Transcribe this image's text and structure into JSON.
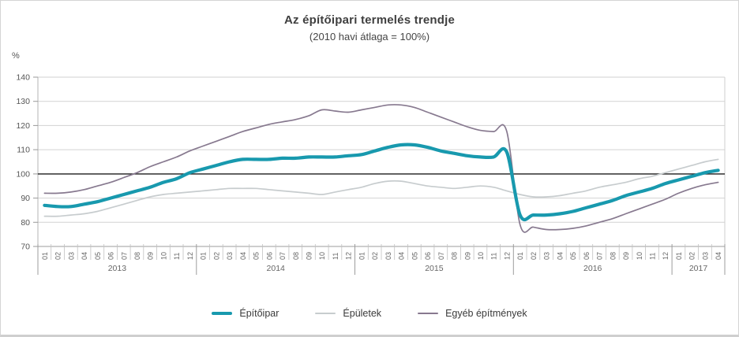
{
  "title": "Az építőipari termelés trendje",
  "subtitle": "(2010 havi átlaga = 100%)",
  "colors": {
    "baseline": "#1b1b1b",
    "grid": "#d2d2d2",
    "axis_line": "#9d9d9d",
    "minor_divider": "#c2c2c2",
    "axis_text": "#666666",
    "ytick_text": "#555555"
  },
  "chart_data": {
    "type": "line",
    "title": "Az építőipari termelés trendje",
    "subtitle": "(2010 havi átlaga = 100%)",
    "y_unit_label": "%",
    "ylim": [
      70,
      140
    ],
    "yticks": [
      70,
      80,
      90,
      100,
      110,
      120,
      130,
      140
    ],
    "baseline": 100,
    "grid": "horizontal",
    "legend_position": "bottom",
    "x_years": [
      {
        "label": "2013",
        "months": [
          "01",
          "02",
          "03",
          "04",
          "05",
          "06",
          "07",
          "08",
          "09",
          "10",
          "11",
          "12"
        ]
      },
      {
        "label": "2014",
        "months": [
          "01",
          "02",
          "03",
          "04",
          "05",
          "06",
          "07",
          "08",
          "09",
          "10",
          "11",
          "12"
        ]
      },
      {
        "label": "2015",
        "months": [
          "01",
          "02",
          "03",
          "04",
          "05",
          "06",
          "07",
          "08",
          "09",
          "10",
          "11",
          "12"
        ]
      },
      {
        "label": "2016",
        "months": [
          "01",
          "02",
          "03",
          "04",
          "05",
          "06",
          "07",
          "08",
          "09",
          "10",
          "11",
          "12"
        ]
      },
      {
        "label": "2017",
        "months": [
          "01",
          "02",
          "03",
          "04"
        ]
      }
    ],
    "series": [
      {
        "name": "Építőipar",
        "color": "#1899ae",
        "line_width": 4.2,
        "values": [
          87,
          86.5,
          86.5,
          87.5,
          88.5,
          90,
          91.5,
          93,
          94.5,
          96.5,
          98,
          100.5,
          102,
          103.5,
          105,
          106,
          106,
          106,
          106.5,
          106.5,
          107,
          107,
          107,
          107.5,
          108,
          109.5,
          111,
          112,
          112,
          111,
          109.5,
          108.5,
          107.5,
          107,
          107,
          109,
          83,
          83,
          83,
          83.5,
          84.5,
          86,
          87.5,
          89,
          91,
          92.5,
          94,
          96,
          97.5,
          99,
          100.5,
          101.5
        ]
      },
      {
        "name": "Épületek",
        "color": "#c7ccce",
        "line_width": 1.7,
        "values": [
          82.5,
          82.5,
          83,
          83.5,
          84.5,
          86,
          87.5,
          89,
          90.5,
          91.5,
          92,
          92.5,
          93,
          93.5,
          94,
          94,
          94,
          93.5,
          93,
          92.5,
          92,
          91.5,
          92.5,
          93.5,
          94.5,
          96,
          97,
          97,
          96,
          95,
          94.5,
          94,
          94.5,
          95,
          94.5,
          93,
          91.5,
          90.5,
          90.5,
          91,
          92,
          93,
          94.5,
          95.5,
          96.5,
          98,
          99,
          100.5,
          102,
          103.5,
          105,
          106
        ]
      },
      {
        "name": "Egyéb építmények",
        "color": "#87798f",
        "line_width": 1.7,
        "values": [
          92,
          92,
          92.5,
          93.5,
          95,
          96.5,
          98.5,
          100.5,
          103,
          105,
          107,
          109.5,
          111.5,
          113.5,
          115.5,
          117.5,
          119,
          120.5,
          121.5,
          122.5,
          124,
          126.5,
          126,
          125.5,
          126.5,
          127.5,
          128.5,
          128.5,
          127.5,
          125.5,
          123.5,
          121.5,
          119.5,
          118,
          117.5,
          117.5,
          79,
          78,
          77,
          77,
          77.5,
          78.5,
          80,
          81.5,
          83.5,
          85.5,
          87.5,
          89.5,
          92,
          94,
          95.5,
          96.5
        ]
      }
    ]
  }
}
